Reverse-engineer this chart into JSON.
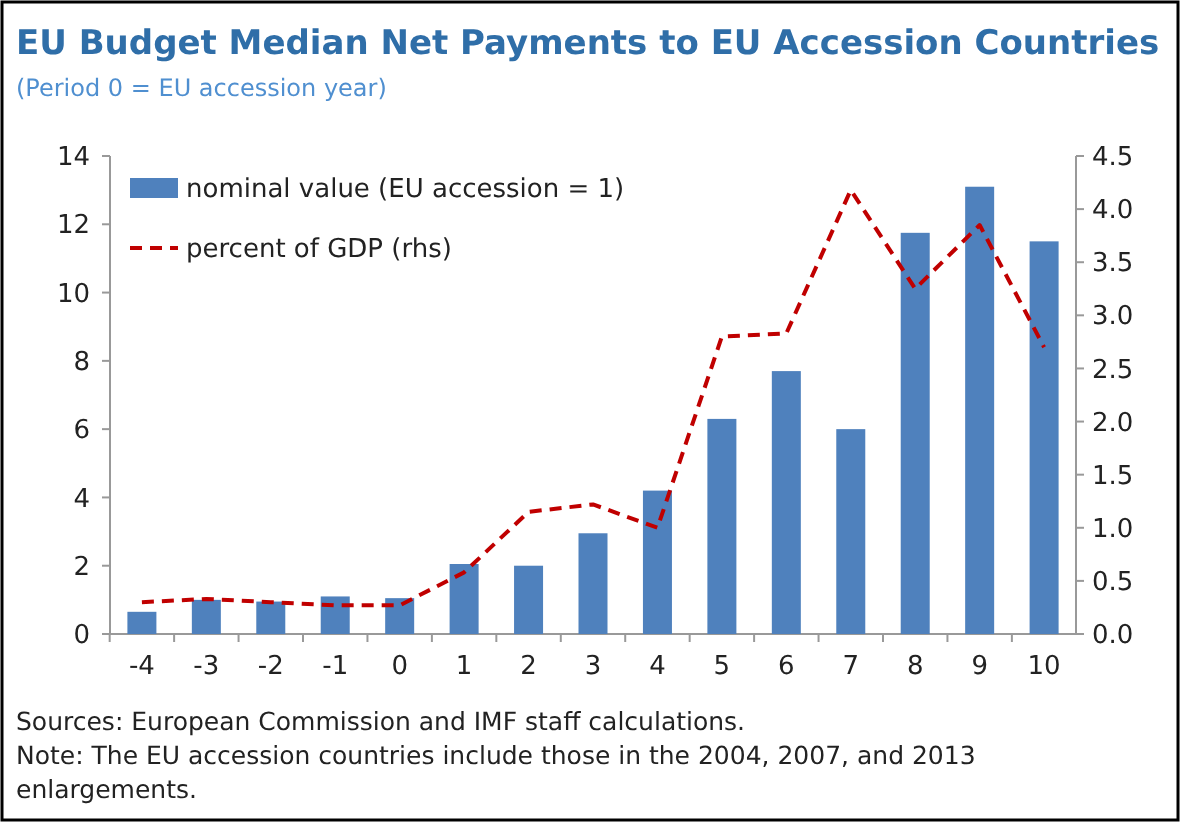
{
  "chart_data": {
    "type": "bar",
    "title": "EU Budget Median Net Payments to EU Accession Countries",
    "subtitle": "(Period 0 = EU accession year)",
    "categories": [
      "-4",
      "-3",
      "-2",
      "-1",
      "0",
      "1",
      "2",
      "3",
      "4",
      "5",
      "6",
      "7",
      "8",
      "9",
      "10"
    ],
    "series": [
      {
        "name": "nominal value (EU accession = 1)",
        "color": "#4f81bd",
        "values": [
          0.65,
          1.0,
          0.95,
          1.1,
          1.05,
          2.05,
          2.0,
          2.95,
          4.2,
          6.3,
          7.7,
          6.0,
          11.75,
          13.1,
          11.5
        ]
      },
      {
        "name": "percent of GDP (rhs)",
        "type": "line",
        "axis": "y2",
        "color": "#c00000",
        "line_style": "dashed",
        "values": [
          0.3,
          0.33,
          0.3,
          0.27,
          0.27,
          0.58,
          1.15,
          1.22,
          1.0,
          2.8,
          2.83,
          4.18,
          3.25,
          3.85,
          2.7
        ]
      }
    ],
    "ylim": [
      0,
      14
    ],
    "yticks": [
      0,
      2,
      4,
      6,
      8,
      10,
      12,
      14
    ],
    "y2lim": [
      0,
      4.5
    ],
    "y2ticks": [
      {
        "value": 0,
        "label": "0.0"
      },
      {
        "value": 0.5,
        "label": "0.5"
      },
      {
        "value": 1,
        "label": "1.0"
      },
      {
        "value": 1.5,
        "label": "1.5"
      },
      {
        "value": 2,
        "label": "2.0"
      },
      {
        "value": 2.5,
        "label": "2.5"
      },
      {
        "value": 3,
        "label": "3.0"
      },
      {
        "value": 3.5,
        "label": "3.5"
      },
      {
        "value": 4,
        "label": "4.0"
      },
      {
        "value": 4.5,
        "label": "4.5"
      }
    ],
    "legend": "top left",
    "grid": false,
    "annotations": [
      "Sources: European Commission and IMF staff calculations.",
      "Note: The EU accession countries include those in the 2004, 2007, and 2013 enlargements."
    ]
  }
}
